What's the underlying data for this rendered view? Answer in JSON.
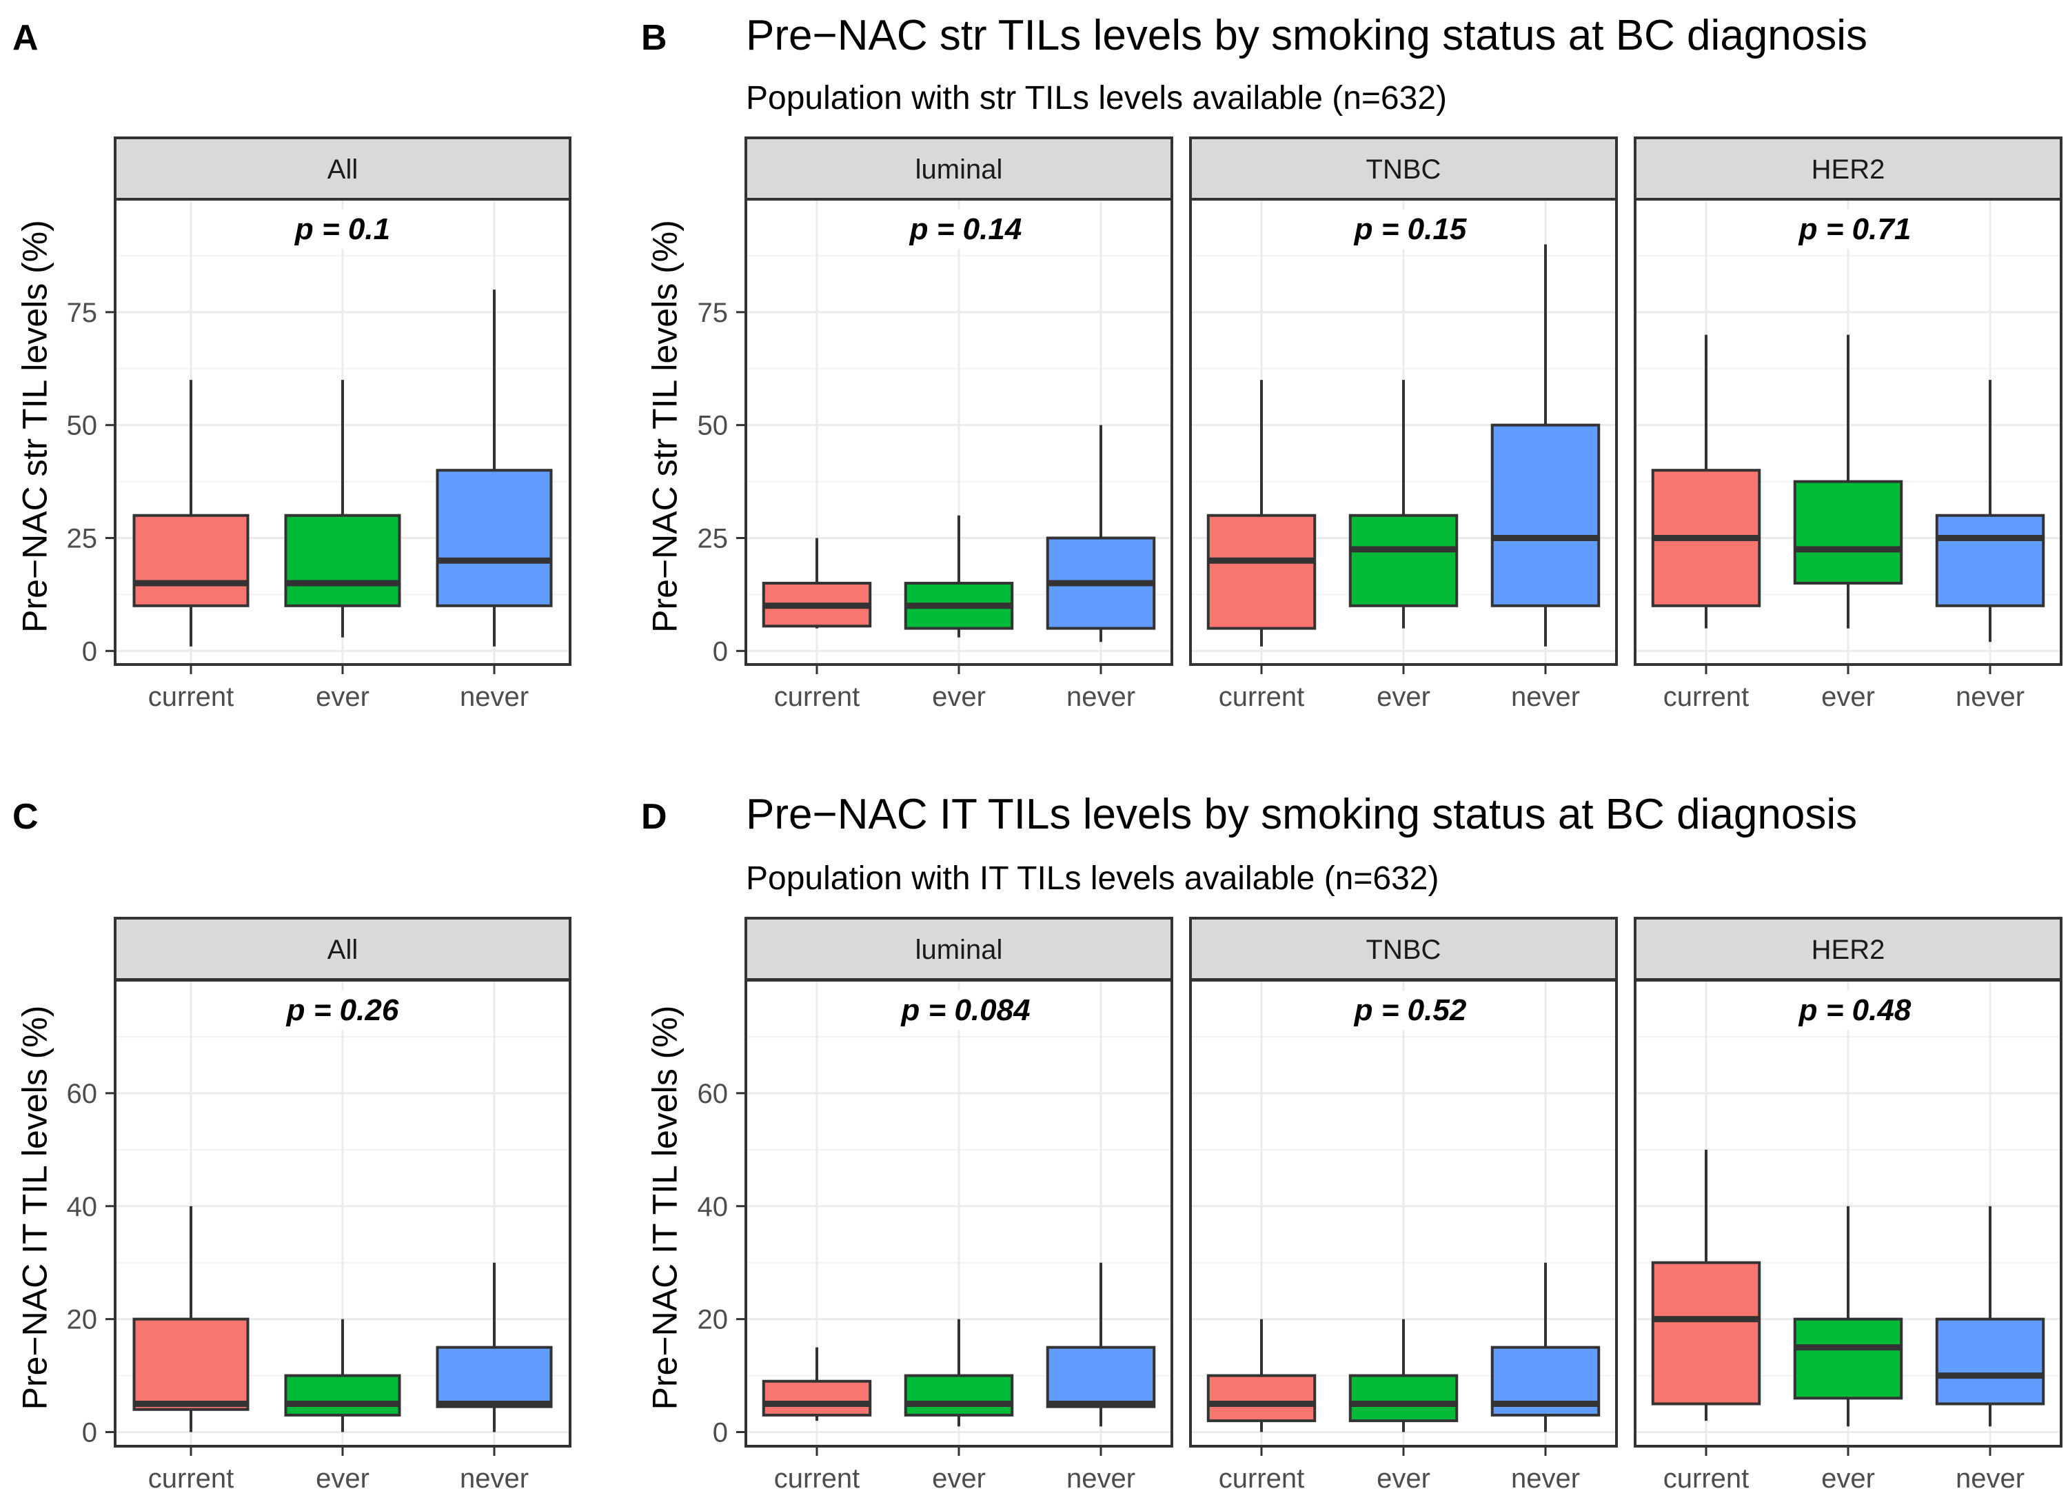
{
  "colors": {
    "current": "#f8766d",
    "ever": "#00ba38",
    "never": "#619cff"
  },
  "chart_data": [
    {
      "type": "box",
      "panel": "A",
      "ylabel": "Pre−NAC str TIL levels (%)",
      "yticks": [
        0,
        25,
        50,
        75
      ],
      "ylim": [
        -3,
        100
      ],
      "facets": [
        {
          "strip": "All",
          "p": "p = 0.1",
          "boxes": [
            {
              "group": "current",
              "min": 1,
              "q1": 10,
              "median": 15,
              "q3": 30,
              "max": 60
            },
            {
              "group": "ever",
              "min": 3,
              "q1": 10,
              "median": 15,
              "q3": 30,
              "max": 60
            },
            {
              "group": "never",
              "min": 1,
              "q1": 10,
              "median": 20,
              "q3": 40,
              "max": 80
            }
          ]
        }
      ]
    },
    {
      "type": "box",
      "panel": "B",
      "title": "Pre−NAC str TILs levels by smoking status at BC diagnosis",
      "subtitle": "Population with str TILs levels available (n=632)",
      "ylabel": "Pre−NAC str TIL levels (%)",
      "yticks": [
        0,
        25,
        50,
        75
      ],
      "ylim": [
        -3,
        100
      ],
      "facets": [
        {
          "strip": "luminal",
          "p": "p = 0.14",
          "boxes": [
            {
              "group": "current",
              "min": 5,
              "q1": 5.5,
              "median": 10,
              "q3": 15,
              "max": 25
            },
            {
              "group": "ever",
              "min": 3,
              "q1": 5,
              "median": 10,
              "q3": 15,
              "max": 30
            },
            {
              "group": "never",
              "min": 2,
              "q1": 5,
              "median": 15,
              "q3": 25,
              "max": 50
            }
          ]
        },
        {
          "strip": "TNBC",
          "p": "p = 0.15",
          "boxes": [
            {
              "group": "current",
              "min": 1,
              "q1": 5,
              "median": 20,
              "q3": 30,
              "max": 60
            },
            {
              "group": "ever",
              "min": 5,
              "q1": 10,
              "median": 22.5,
              "q3": 30,
              "max": 60
            },
            {
              "group": "never",
              "min": 1,
              "q1": 10,
              "median": 25,
              "q3": 50,
              "max": 90
            }
          ]
        },
        {
          "strip": "HER2",
          "p": "p = 0.71",
          "boxes": [
            {
              "group": "current",
              "min": 5,
              "q1": 10,
              "median": 25,
              "q3": 40,
              "max": 70
            },
            {
              "group": "ever",
              "min": 5,
              "q1": 15,
              "median": 22.5,
              "q3": 37.5,
              "max": 70
            },
            {
              "group": "never",
              "min": 2,
              "q1": 10,
              "median": 25,
              "q3": 30,
              "max": 60
            }
          ]
        }
      ]
    },
    {
      "type": "box",
      "panel": "C",
      "ylabel": "Pre−NAC IT TIL levels (%)",
      "yticks": [
        0,
        20,
        40,
        60
      ],
      "ylim": [
        -2.5,
        80
      ],
      "facets": [
        {
          "strip": "All",
          "p": "p = 0.26",
          "boxes": [
            {
              "group": "current",
              "min": 0,
              "q1": 4,
              "median": 5,
              "q3": 20,
              "max": 40
            },
            {
              "group": "ever",
              "min": 0,
              "q1": 3,
              "median": 5,
              "q3": 10,
              "max": 20
            },
            {
              "group": "never",
              "min": 0,
              "q1": 4.5,
              "median": 5,
              "q3": 15,
              "max": 30
            }
          ]
        }
      ]
    },
    {
      "type": "box",
      "panel": "D",
      "title": "Pre−NAC IT TILs levels by smoking status at BC diagnosis",
      "subtitle": "Population with IT TILs levels available (n=632)",
      "ylabel": "Pre−NAC IT TIL levels (%)",
      "yticks": [
        0,
        20,
        40,
        60
      ],
      "ylim": [
        -2.5,
        80
      ],
      "facets": [
        {
          "strip": "luminal",
          "p": "p = 0.084",
          "boxes": [
            {
              "group": "current",
              "min": 2,
              "q1": 3,
              "median": 5,
              "q3": 9,
              "max": 15
            },
            {
              "group": "ever",
              "min": 1,
              "q1": 3,
              "median": 5,
              "q3": 10,
              "max": 20
            },
            {
              "group": "never",
              "min": 1,
              "q1": 4.5,
              "median": 5,
              "q3": 15,
              "max": 30
            }
          ]
        },
        {
          "strip": "TNBC",
          "p": "p = 0.52",
          "boxes": [
            {
              "group": "current",
              "min": 0,
              "q1": 2,
              "median": 5,
              "q3": 10,
              "max": 20
            },
            {
              "group": "ever",
              "min": 0,
              "q1": 2,
              "median": 5,
              "q3": 10,
              "max": 20
            },
            {
              "group": "never",
              "min": 0,
              "q1": 3,
              "median": 5,
              "q3": 15,
              "max": 30
            }
          ]
        },
        {
          "strip": "HER2",
          "p": "p = 0.48",
          "boxes": [
            {
              "group": "current",
              "min": 2,
              "q1": 5,
              "median": 20,
              "q3": 30,
              "max": 50
            },
            {
              "group": "ever",
              "min": 1,
              "q1": 6,
              "median": 15,
              "q3": 20,
              "max": 40
            },
            {
              "group": "never",
              "min": 1,
              "q1": 5,
              "median": 10,
              "q3": 20,
              "max": 40
            }
          ]
        }
      ]
    }
  ]
}
